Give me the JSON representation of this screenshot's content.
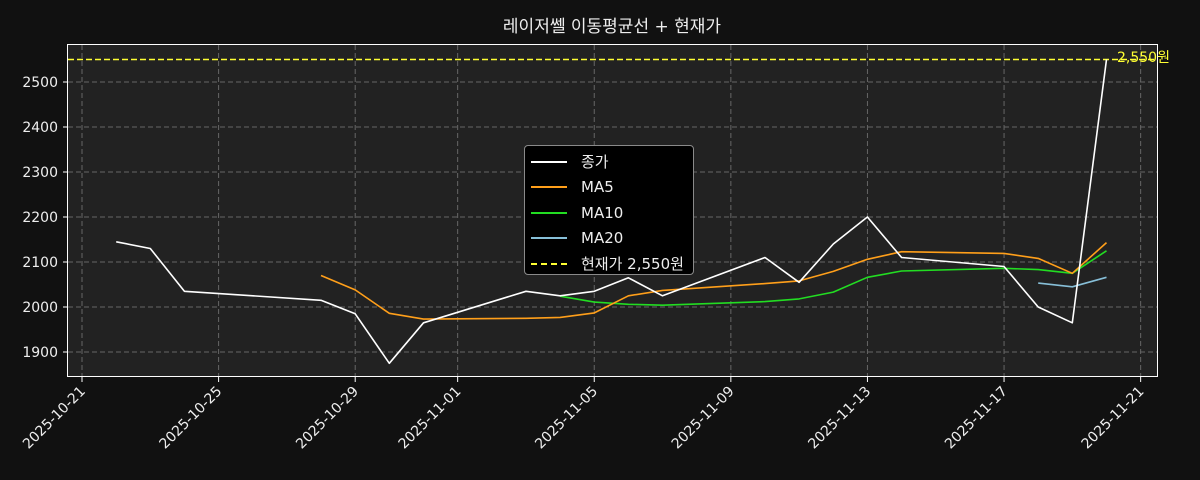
{
  "title": "레이저쎌 이동평균선 + 현재가",
  "current_price_label": "2,550원",
  "colors": {
    "background": "#111111",
    "plot_background": "#222222",
    "close": "#ffffff",
    "ma5": "#ff9f1a",
    "ma10": "#22dd22",
    "ma20": "#87bfd8",
    "current": "#ffff33",
    "grid": "#666666"
  },
  "legend": {
    "items": [
      {
        "label": "종가",
        "color": "#ffffff",
        "style": "solid"
      },
      {
        "label": "MA5",
        "color": "#ff9f1a",
        "style": "solid"
      },
      {
        "label": "MA10",
        "color": "#22dd22",
        "style": "solid"
      },
      {
        "label": "MA20",
        "color": "#87bfd8",
        "style": "solid"
      },
      {
        "label": "현재가 2,550원",
        "color": "#ffff33",
        "style": "dashed"
      }
    ]
  },
  "chart_data": {
    "type": "line",
    "title": "레이저쎌 이동평균선 + 현재가",
    "xlabel": "",
    "ylabel": "",
    "ylim": [
      1845,
      2585
    ],
    "xlim": [
      "2025-10-20",
      "2025-11-21"
    ],
    "grid": true,
    "legend_position": "center",
    "x_ticks": [
      "2025-10-21",
      "2025-10-25",
      "2025-10-29",
      "2025-11-01",
      "2025-11-05",
      "2025-11-09",
      "2025-11-13",
      "2025-11-17",
      "2025-11-21"
    ],
    "y_ticks": [
      1900,
      2000,
      2100,
      2200,
      2300,
      2400,
      2500
    ],
    "x": [
      "2025-10-22",
      "2025-10-23",
      "2025-10-24",
      "2025-10-28",
      "2025-10-29",
      "2025-10-30",
      "2025-10-31",
      "2025-11-03",
      "2025-11-04",
      "2025-11-05",
      "2025-11-06",
      "2025-11-07",
      "2025-11-10",
      "2025-11-11",
      "2025-11-12",
      "2025-11-13",
      "2025-11-14",
      "2025-11-17",
      "2025-11-18",
      "2025-11-19",
      "2025-11-20"
    ],
    "series": [
      {
        "name": "종가",
        "values": [
          2145,
          2130,
          2035,
          2015,
          1985,
          1875,
          1965,
          2035,
          2025,
          2035,
          2065,
          2025,
          2110,
          2055,
          2140,
          2200,
          2110,
          2090,
          2000,
          1965,
          2550
        ]
      },
      {
        "name": "MA5",
        "values": [
          null,
          null,
          null,
          2070,
          2038,
          1986,
          1973,
          1975,
          1977,
          1987,
          2025,
          2037,
          2052,
          2058,
          2079,
          2106,
          2123,
          2119,
          2108,
          2075,
          2143
        ]
      },
      {
        "name": "MA10",
        "values": [
          null,
          null,
          null,
          null,
          null,
          null,
          null,
          null,
          2024,
          2011,
          2006,
          2004,
          2012,
          2018,
          2033,
          2066,
          2080,
          2086,
          2083,
          2075,
          2125
        ]
      },
      {
        "name": "MA20",
        "values": [
          null,
          null,
          null,
          null,
          null,
          null,
          null,
          null,
          null,
          null,
          null,
          null,
          null,
          null,
          null,
          null,
          null,
          null,
          2053,
          2045,
          2066
        ]
      }
    ],
    "hlines": [
      {
        "name": "현재가 2,550원",
        "y": 2550,
        "style": "dashed",
        "color": "#ffff33",
        "annotation": "2,550원"
      }
    ]
  }
}
